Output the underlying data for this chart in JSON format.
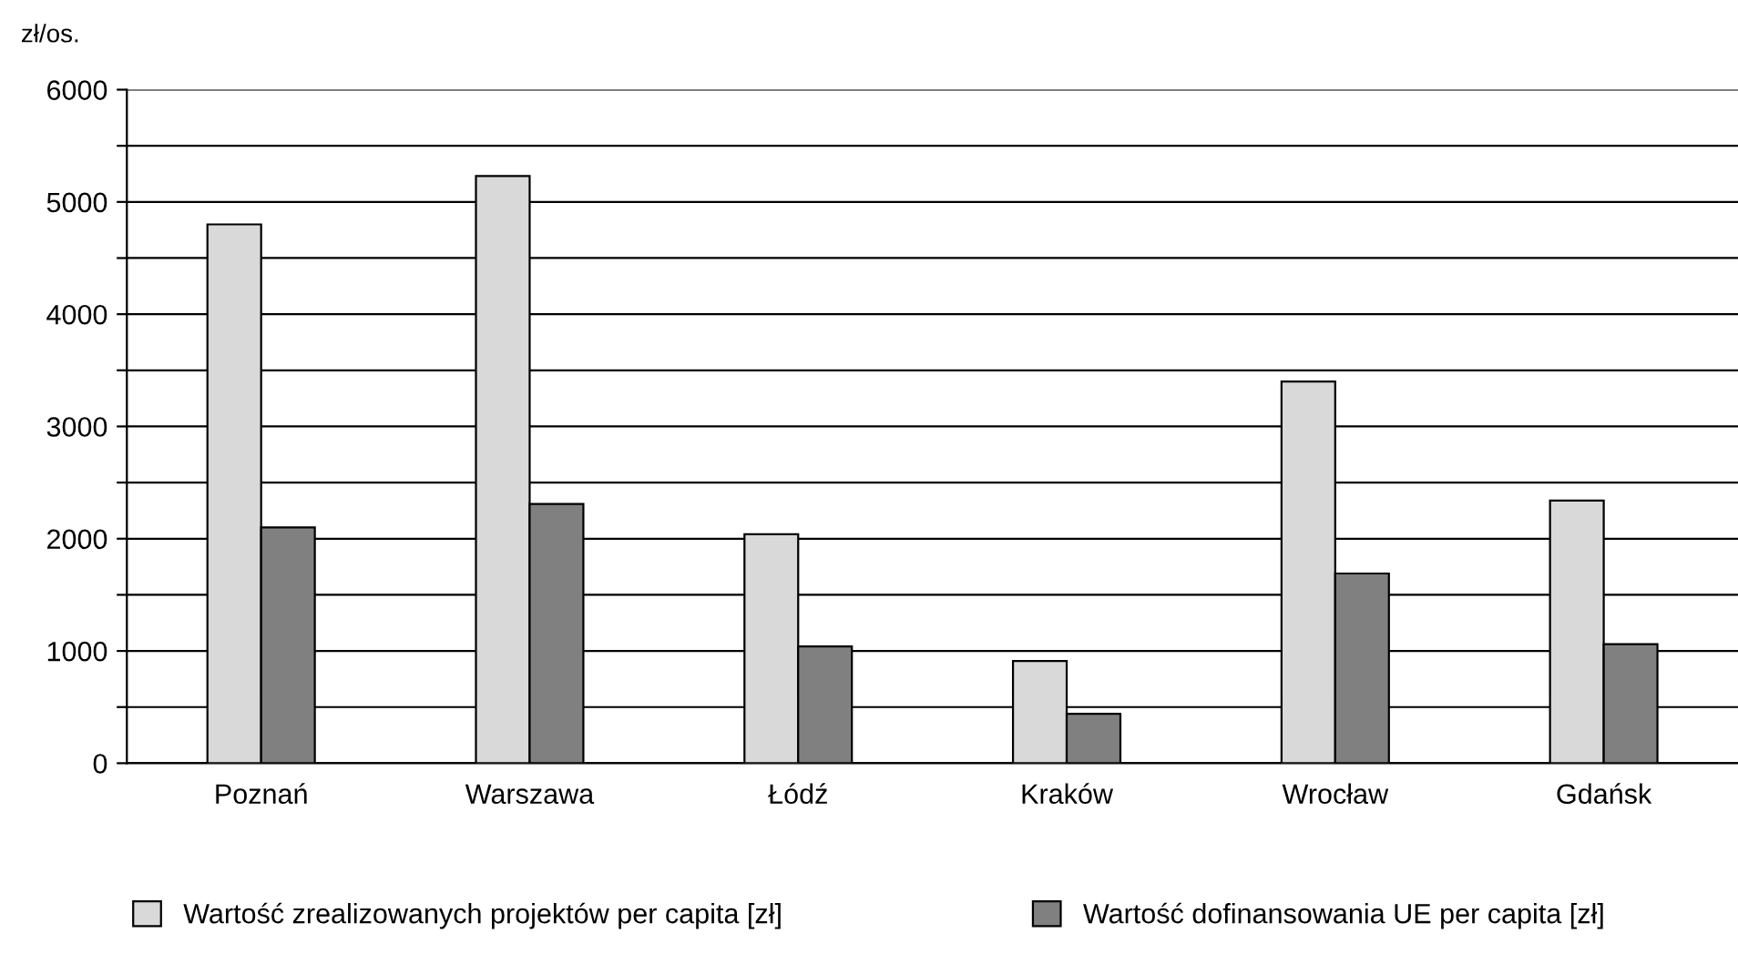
{
  "chart_data": {
    "type": "bar",
    "ylabel": "zł/os.",
    "categories": [
      "Poznań",
      "Warszawa",
      "Łódź",
      "Kraków",
      "Wrocław",
      "Gdańsk"
    ],
    "series": [
      {
        "name": "Wartość zrealizowanych projektów per capita [zł]",
        "color": "#d9d9d9",
        "values": [
          4800,
          5230,
          2040,
          910,
          3400,
          2340
        ]
      },
      {
        "name": "Wartość dofinansowania UE per capita [zł]",
        "color": "#808080",
        "values": [
          2100,
          2310,
          1040,
          440,
          1690,
          1060
        ]
      }
    ],
    "ylim": [
      0,
      6000
    ],
    "yticks": [
      0,
      {
        "value": 500,
        "label": null
      },
      1000,
      {
        "value": 1500,
        "label": null
      },
      2000,
      {
        "value": 2500,
        "label": null
      },
      3000,
      {
        "value": 3500,
        "label": null
      },
      4000,
      {
        "value": 4500,
        "label": null
      },
      5000,
      {
        "value": 5500,
        "label": null
      },
      6000
    ],
    "grid": "y",
    "legend": "bottom"
  }
}
